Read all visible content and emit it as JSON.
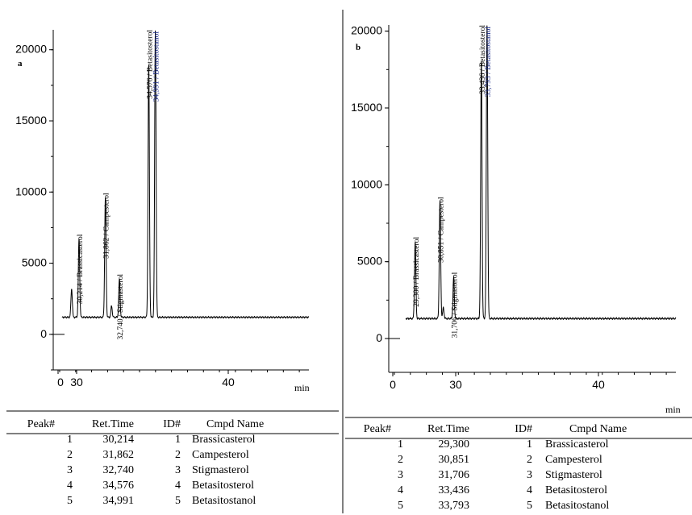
{
  "chart_data": [
    {
      "type": "line",
      "panel_label": "a",
      "xlabel": "min",
      "x_ticks": [
        "0",
        "30",
        "40"
      ],
      "y_ticks": [
        0,
        5000,
        10000,
        15000,
        20000
      ],
      "xlim": [
        28.8,
        44.6
      ],
      "ylim": [
        -2500,
        21400
      ],
      "baseline": 1200,
      "peaks": [
        {
          "x": 29.75,
          "y": 3200,
          "label": ""
        },
        {
          "x": 30.214,
          "y": 6700,
          "label": "30,214 / Brassicasterol"
        },
        {
          "x": 31.862,
          "y": 9600,
          "label": "31,862 / Campesterol"
        },
        {
          "x": 32.25,
          "y": 2000,
          "label": ""
        },
        {
          "x": 32.74,
          "y": 3900,
          "label": "32,740 / Stigmasterol"
        },
        {
          "x": 34.576,
          "y": 19000,
          "label": "34,576 / Betasitosterol"
        },
        {
          "x": 34.991,
          "y": 21400,
          "label": "34,991 / Betasitostanol"
        }
      ]
    },
    {
      "type": "line",
      "panel_label": "b",
      "xlabel": "min",
      "x_ticks": [
        "0",
        "30",
        "40"
      ],
      "y_ticks": [
        0,
        5000,
        10000,
        15000,
        20000
      ],
      "xlim": [
        27.9,
        45.6
      ],
      "ylim": [
        -2200,
        20400
      ],
      "baseline": 1300,
      "peaks": [
        {
          "x": 29.3,
          "y": 6300,
          "label": "29,300 / Brassicasterol"
        },
        {
          "x": 30.851,
          "y": 8900,
          "label": "30,851 / Campesterol"
        },
        {
          "x": 31.06,
          "y": 2000,
          "label": ""
        },
        {
          "x": 31.706,
          "y": 4000,
          "label": "31,706 / Stigmasterol"
        },
        {
          "x": 33.436,
          "y": 18100,
          "label": "33,436 / Betasitosterol"
        },
        {
          "x": 33.793,
          "y": 20400,
          "label": "33,793 / Betasitostanol"
        }
      ]
    }
  ],
  "tables": [
    {
      "headers": {
        "peak": "Peak#",
        "ret_time": "Ret.Time",
        "id": "ID#",
        "name": "Cmpd Name"
      },
      "rows": [
        {
          "peak": "1",
          "ret_time": "30,214",
          "id": "1",
          "name": "Brassicasterol"
        },
        {
          "peak": "2",
          "ret_time": "31,862",
          "id": "2",
          "name": "Campesterol"
        },
        {
          "peak": "3",
          "ret_time": "32,740",
          "id": "3",
          "name": "Stigmasterol"
        },
        {
          "peak": "4",
          "ret_time": "34,576",
          "id": "4",
          "name": "Betasitosterol"
        },
        {
          "peak": "5",
          "ret_time": "34,991",
          "id": "5",
          "name": "Betasitostanol"
        }
      ]
    },
    {
      "headers": {
        "peak": "Peak#",
        "ret_time": "Ret.Time",
        "id": "ID#",
        "name": "Cmpd Name"
      },
      "rows": [
        {
          "peak": "1",
          "ret_time": "29,300",
          "id": "1",
          "name": "Brassicasterol"
        },
        {
          "peak": "2",
          "ret_time": "30,851",
          "id": "2",
          "name": "Campesterol"
        },
        {
          "peak": "3",
          "ret_time": "31,706",
          "id": "3",
          "name": "Stigmasterol"
        },
        {
          "peak": "4",
          "ret_time": "33,436",
          "id": "4",
          "name": "Betasitosterol"
        },
        {
          "peak": "5",
          "ret_time": "33,793",
          "id": "5",
          "name": "Betasitostanol"
        }
      ]
    }
  ]
}
